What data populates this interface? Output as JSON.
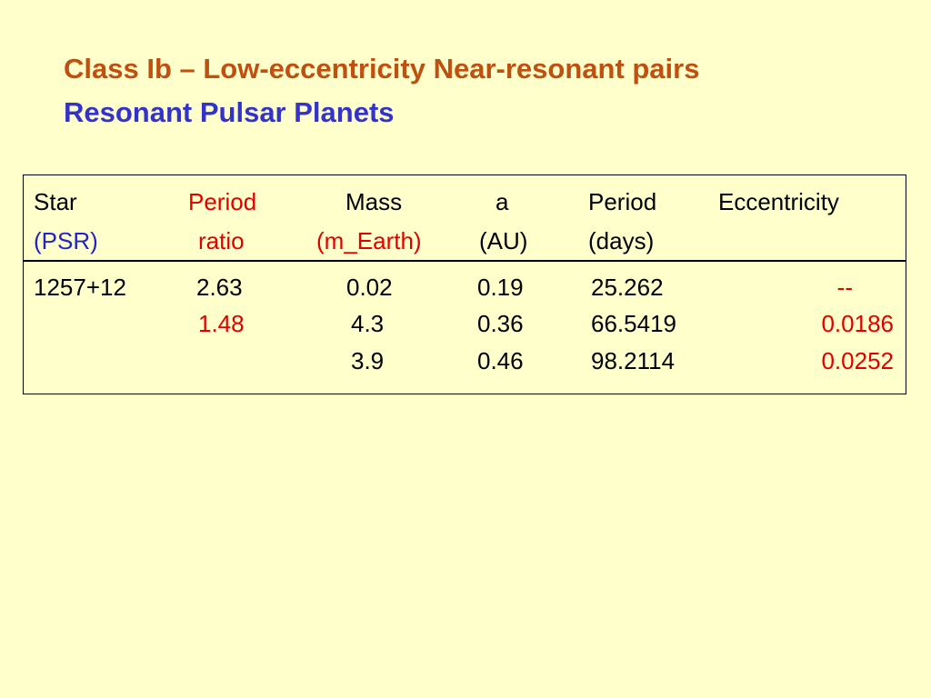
{
  "title": {
    "line1": "Class Ib – Low-eccentricity Near-resonant pairs",
    "line2": "Resonant Pulsar Planets"
  },
  "table": {
    "header": [
      [
        "Star",
        "(PSR)"
      ],
      [
        "Period",
        "ratio"
      ],
      [
        "Mass",
        "(m_Earth)"
      ],
      [
        "a",
        "(AU)"
      ],
      [
        "Period",
        "(days)"
      ],
      [
        "Eccentricity"
      ]
    ],
    "rows": [
      [
        "1257+12",
        "2.63",
        "0.02",
        "0.19",
        "25.262",
        "--"
      ],
      [
        null,
        "1.48",
        "4.3",
        "0.36",
        "66.5419",
        "0.0186"
      ],
      [
        null,
        null,
        "3.9",
        "0.46",
        "98.2114",
        "0.0252"
      ]
    ]
  }
}
